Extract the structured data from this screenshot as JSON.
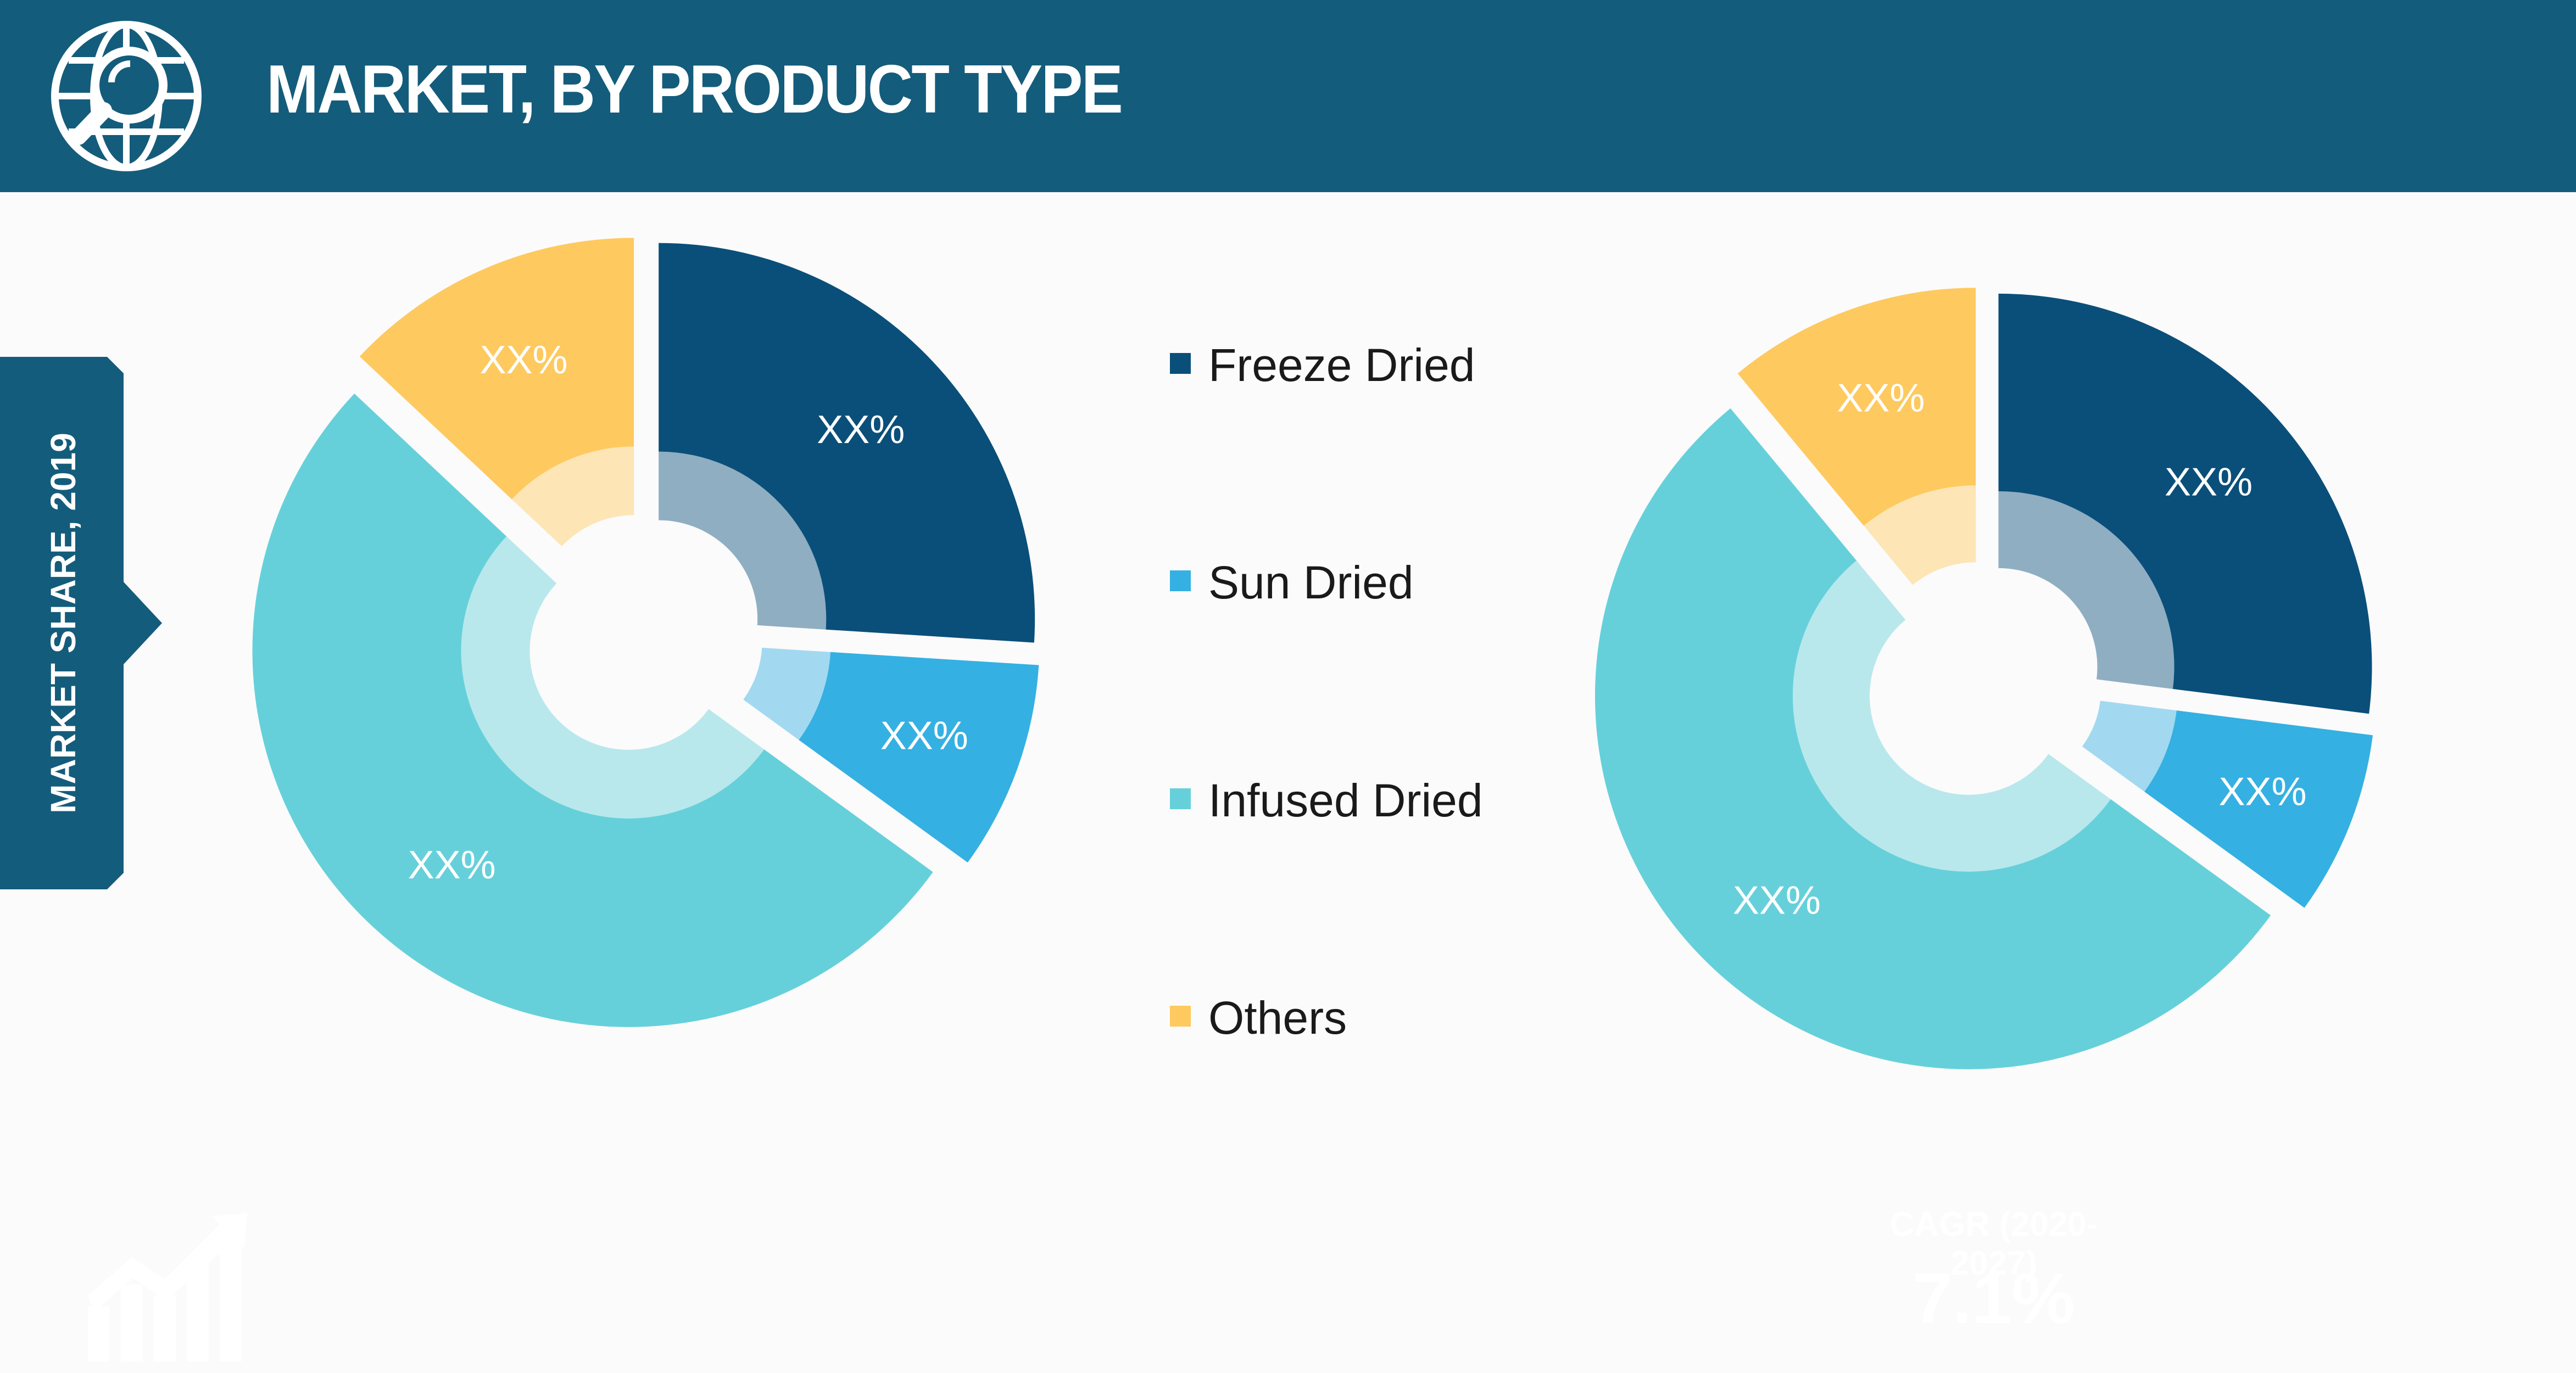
{
  "header": {
    "title": "MARKET, BY PRODUCT TYPE",
    "icon": "globe-search-icon",
    "background_color": "#145c7b"
  },
  "side_tab": {
    "label": "MARKET SHARE, 2019",
    "background_color": "#145c7b"
  },
  "legend": {
    "items": [
      {
        "label": "Freeze Dried",
        "color": "#0a4f7a"
      },
      {
        "label": "Sun Dried",
        "color": "#35b0e2"
      },
      {
        "label": "Infused Dried",
        "color": "#66d0da"
      },
      {
        "label": "Others",
        "color": "#fec95f"
      }
    ]
  },
  "chart_data": [
    {
      "type": "pie",
      "categories": [
        "Freeze Dried",
        "Sun Dried",
        "Infused Dried",
        "Others"
      ],
      "values": [
        26,
        9,
        52,
        13
      ],
      "data_labels": [
        "XX%",
        "XX%",
        "XX%",
        "XX%"
      ],
      "colors": [
        "#0a4f7a",
        "#35b0e2",
        "#66d0da",
        "#fec95f"
      ],
      "legend": "center"
    },
    {
      "type": "pie",
      "categories": [
        "Freeze Dried",
        "Sun Dried",
        "Infused Dried",
        "Others"
      ],
      "values": [
        27,
        8,
        54,
        11
      ],
      "data_labels": [
        "XX%",
        "XX%",
        "XX%",
        "XX%"
      ],
      "colors": [
        "#0a4f7a",
        "#35b0e2",
        "#66d0da",
        "#fec95f"
      ],
      "legend": "center"
    }
  ],
  "cagr": {
    "label": "CAGR (2020-2027)",
    "value": "7.1%"
  },
  "bottom_icon": "growth-chart-icon"
}
